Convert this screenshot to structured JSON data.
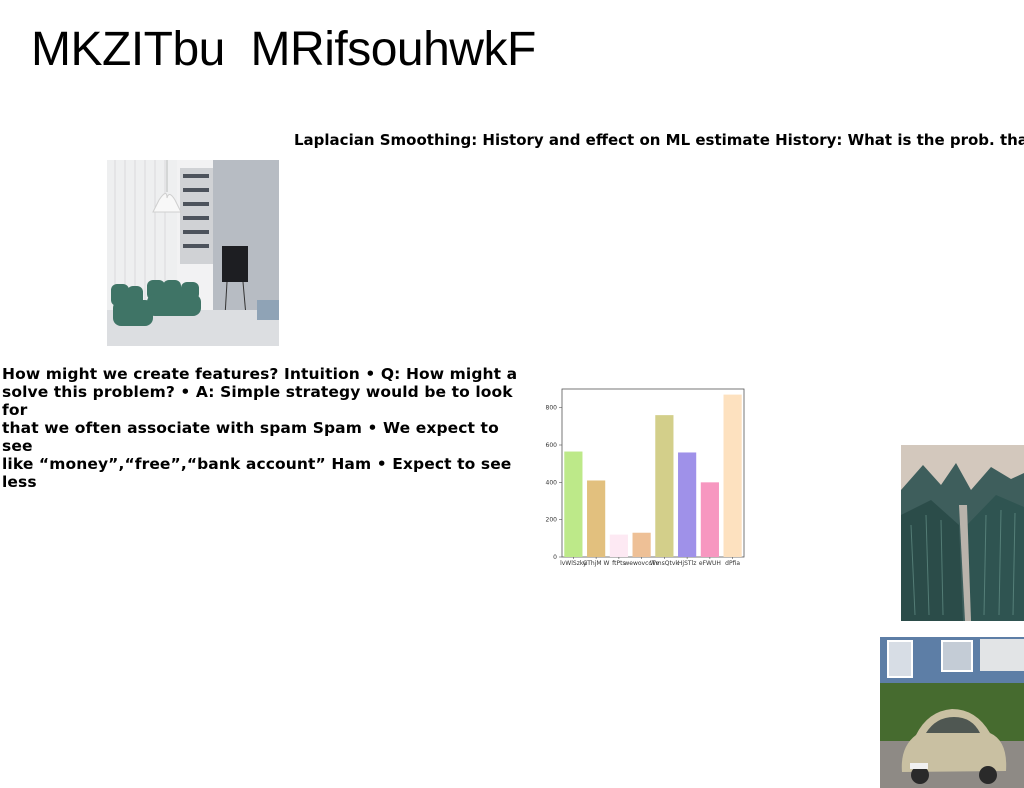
{
  "slide": {
    "title": "MKZITbu  MRifsouhwkF",
    "subheading": "Laplacian Smoothing: History and effect on ML estimate History: What is the prob. that",
    "body": "How might we create features? Intuition • Q: How might a\nsolve this problem? • A: Simple strategy would be to look for\nthat we often associate with spam Spam • We expect to see\nlike “money”,“free”,“bank account” Ham • Expect to see less"
  },
  "images": {
    "living_room": "living-room-photo",
    "mountain": "mountain-photo",
    "car": "vintage-beetle-photo"
  },
  "chart_data": {
    "type": "bar",
    "categories": [
      "lvWlSzky",
      "GThjM W",
      "ftPts",
      "wewovccTv",
      "WmsQtvk",
      "HjSTlz",
      "eFWUH",
      "dPfia"
    ],
    "values": [
      565,
      410,
      120,
      130,
      760,
      560,
      400,
      870
    ],
    "colors": [
      "#bde989",
      "#e2c07e",
      "#fde9f3",
      "#eec096",
      "#d3cf8a",
      "#9f91e9",
      "#f797c0",
      "#fde1bf"
    ],
    "ylim": [
      0,
      900
    ],
    "yticks": [
      0,
      200,
      400,
      600,
      800
    ],
    "title": "",
    "xlabel": "",
    "ylabel": "",
    "grid": false
  }
}
